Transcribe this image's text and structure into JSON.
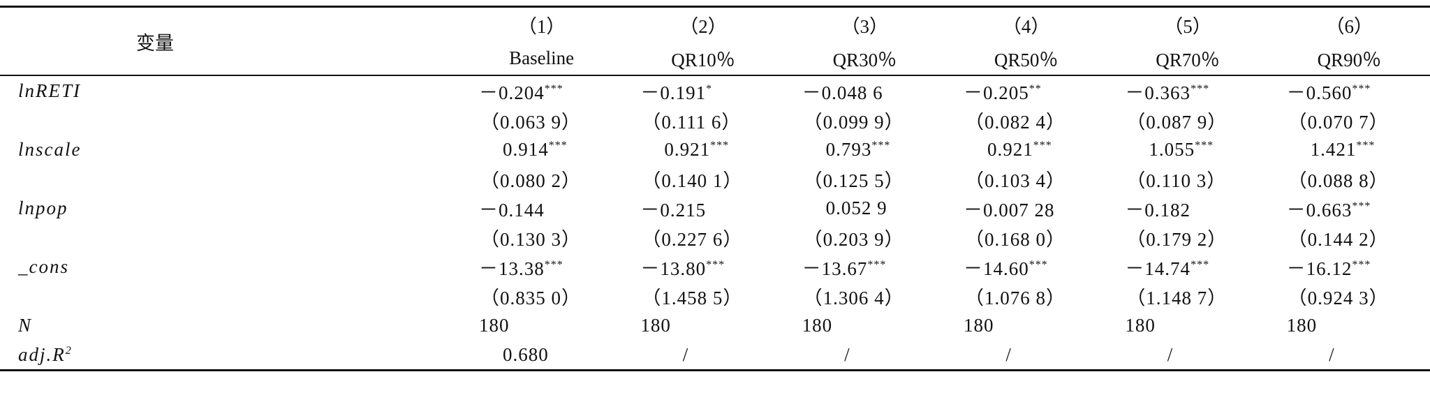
{
  "header": {
    "variable": "变量",
    "columns": [
      {
        "number": "（1）",
        "label": "Baseline"
      },
      {
        "number": "（2）",
        "label": "QR10％"
      },
      {
        "number": "（3）",
        "label": "QR30％"
      },
      {
        "number": "（4）",
        "label": "QR50％"
      },
      {
        "number": "（5）",
        "label": "QR70％"
      },
      {
        "number": "（6）",
        "label": "QR90％"
      }
    ]
  },
  "rows": [
    {
      "label": "lnRETI",
      "cells": [
        {
          "text": "－0.204",
          "stars": "***"
        },
        {
          "text": "－0.191",
          "stars": "*"
        },
        {
          "text": "－0.048 6"
        },
        {
          "text": "－0.205",
          "stars": "**"
        },
        {
          "text": "－0.363",
          "stars": "***"
        },
        {
          "text": "－0.560",
          "stars": "***"
        }
      ]
    },
    {
      "cells": [
        {
          "text": "（0.063 9）"
        },
        {
          "text": "（0.111 6）"
        },
        {
          "text": "（0.099 9）"
        },
        {
          "text": "（0.082 4）"
        },
        {
          "text": "（0.087 9）"
        },
        {
          "text": "（0.070 7）"
        }
      ]
    },
    {
      "label": "lnscale",
      "cells": [
        {
          "text": "0.914",
          "stars": "***"
        },
        {
          "text": "0.921",
          "stars": "***"
        },
        {
          "text": "0.793",
          "stars": "***"
        },
        {
          "text": "0.921",
          "stars": "***"
        },
        {
          "text": "1.055",
          "stars": "***"
        },
        {
          "text": "1.421",
          "stars": "***"
        }
      ]
    },
    {
      "cells": [
        {
          "text": "（0.080 2）"
        },
        {
          "text": "（0.140 1）"
        },
        {
          "text": "（0.125 5）"
        },
        {
          "text": "（0.103 4）"
        },
        {
          "text": "（0.110 3）"
        },
        {
          "text": "（0.088 8）"
        }
      ]
    },
    {
      "label": "lnpop",
      "cells": [
        {
          "text": "－0.144"
        },
        {
          "text": "－0.215"
        },
        {
          "text": "0.052 9"
        },
        {
          "text": "－0.007 28"
        },
        {
          "text": "－0.182"
        },
        {
          "text": "－0.663",
          "stars": "***"
        }
      ]
    },
    {
      "cells": [
        {
          "text": "（0.130 3）"
        },
        {
          "text": "（0.227 6）"
        },
        {
          "text": "（0.203 9）"
        },
        {
          "text": "（0.168 0）"
        },
        {
          "text": "（0.179 2）"
        },
        {
          "text": "（0.144 2）"
        }
      ]
    },
    {
      "label": "_cons",
      "cells": [
        {
          "text": "－13.38",
          "stars": "***"
        },
        {
          "text": "－13.80",
          "stars": "***"
        },
        {
          "text": "－13.67",
          "stars": "***"
        },
        {
          "text": "－14.60",
          "stars": "***"
        },
        {
          "text": "－14.74",
          "stars": "***"
        },
        {
          "text": "－16.12",
          "stars": "***"
        }
      ]
    },
    {
      "cells": [
        {
          "text": "（0.835 0）"
        },
        {
          "text": "（1.458 5）"
        },
        {
          "text": "（1.306 4）"
        },
        {
          "text": "（1.076 8）"
        },
        {
          "text": "（1.148 7）"
        },
        {
          "text": "（0.924 3）"
        }
      ]
    },
    {
      "label": "N",
      "cells": [
        {
          "text": "180"
        },
        {
          "text": "180"
        },
        {
          "text": "180"
        },
        {
          "text": "180"
        },
        {
          "text": "180"
        },
        {
          "text": "180"
        }
      ]
    },
    {
      "label": "adj.R",
      "superscript": "2",
      "cells": [
        {
          "text": "0.680"
        },
        {
          "text": "/"
        },
        {
          "text": "/"
        },
        {
          "text": "/"
        },
        {
          "text": "/"
        },
        {
          "text": "/"
        }
      ]
    }
  ]
}
